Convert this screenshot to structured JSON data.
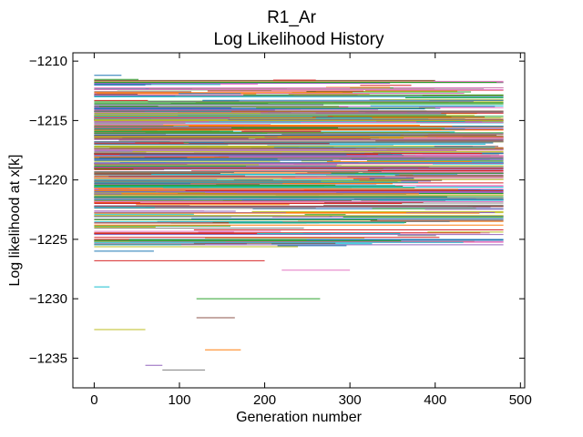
{
  "figure": {
    "suptitle": "R1_Ar"
  },
  "chart_data": {
    "type": "line",
    "title": "Log Likelihood History",
    "xlabel": "Generation number",
    "ylabel": "Log likelihood at x[k]",
    "xlim": [
      -25,
      505
    ],
    "ylim": [
      -1237.5,
      -1209.3
    ],
    "xticks": [
      0,
      100,
      200,
      300,
      400,
      500
    ],
    "yticks": [
      -1210,
      -1215,
      -1220,
      -1225,
      -1230,
      -1235
    ],
    "ytick_labels": [
      "−1210",
      "−1215",
      "−1220",
      "−1225",
      "−1230",
      "−1235"
    ],
    "grid": false,
    "legend": "none",
    "generations": [
      0,
      480
    ],
    "description_series": "Hundreds of walkers, each a horizontal step trace at a constant log likelihood; densest band between -1214 and -1222",
    "colors": [
      "#1f77b4",
      "#ff7f0e",
      "#2ca02c",
      "#d62728",
      "#9467bd",
      "#8c564b",
      "#e377c2",
      "#7f7f7f",
      "#bcbd22",
      "#17becf"
    ],
    "series": [
      {
        "y": -1211.2,
        "x0": 0,
        "x1": 32
      },
      {
        "y": -1211.6,
        "x0": 210,
        "x1": 260
      },
      {
        "y": -1212.4,
        "x0": 0,
        "x1": 480
      },
      {
        "y": -1213.0,
        "x0": 0,
        "x1": 480
      },
      {
        "y": -1213.6,
        "x0": 0,
        "x1": 480
      },
      {
        "y": -1214.2,
        "x0": 0,
        "x1": 480
      },
      {
        "y": -1215.0,
        "x0": 0,
        "x1": 480
      },
      {
        "y": -1215.8,
        "x0": 0,
        "x1": 480
      },
      {
        "y": -1216.6,
        "x0": 0,
        "x1": 480
      },
      {
        "y": -1217.4,
        "x0": 0,
        "x1": 480
      },
      {
        "y": -1218.2,
        "x0": 0,
        "x1": 480
      },
      {
        "y": -1219.0,
        "x0": 0,
        "x1": 480
      },
      {
        "y": -1219.8,
        "x0": 0,
        "x1": 480
      },
      {
        "y": -1220.6,
        "x0": 0,
        "x1": 480
      },
      {
        "y": -1221.4,
        "x0": 0,
        "x1": 480
      },
      {
        "y": -1222.2,
        "x0": 0,
        "x1": 480
      },
      {
        "y": -1223.0,
        "x0": 0,
        "x1": 480
      },
      {
        "y": -1223.8,
        "x0": 0,
        "x1": 480
      },
      {
        "y": -1224.6,
        "x0": 0,
        "x1": 480
      },
      {
        "y": -1225.4,
        "x0": 0,
        "x1": 130
      },
      {
        "y": -1226.0,
        "x0": 0,
        "x1": 70
      },
      {
        "y": -1226.8,
        "x0": 0,
        "x1": 200
      },
      {
        "y": -1227.6,
        "x0": 220,
        "x1": 300
      },
      {
        "y": -1229.0,
        "x0": 0,
        "x1": 18
      },
      {
        "y": -1230.0,
        "x0": 120,
        "x1": 265
      },
      {
        "y": -1231.6,
        "x0": 120,
        "x1": 165
      },
      {
        "y": -1232.6,
        "x0": 0,
        "x1": 60
      },
      {
        "y": -1234.3,
        "x0": 130,
        "x1": 172
      },
      {
        "y": -1235.6,
        "x0": 60,
        "x1": 80
      },
      {
        "y": -1236.0,
        "x0": 80,
        "x1": 130
      }
    ]
  }
}
